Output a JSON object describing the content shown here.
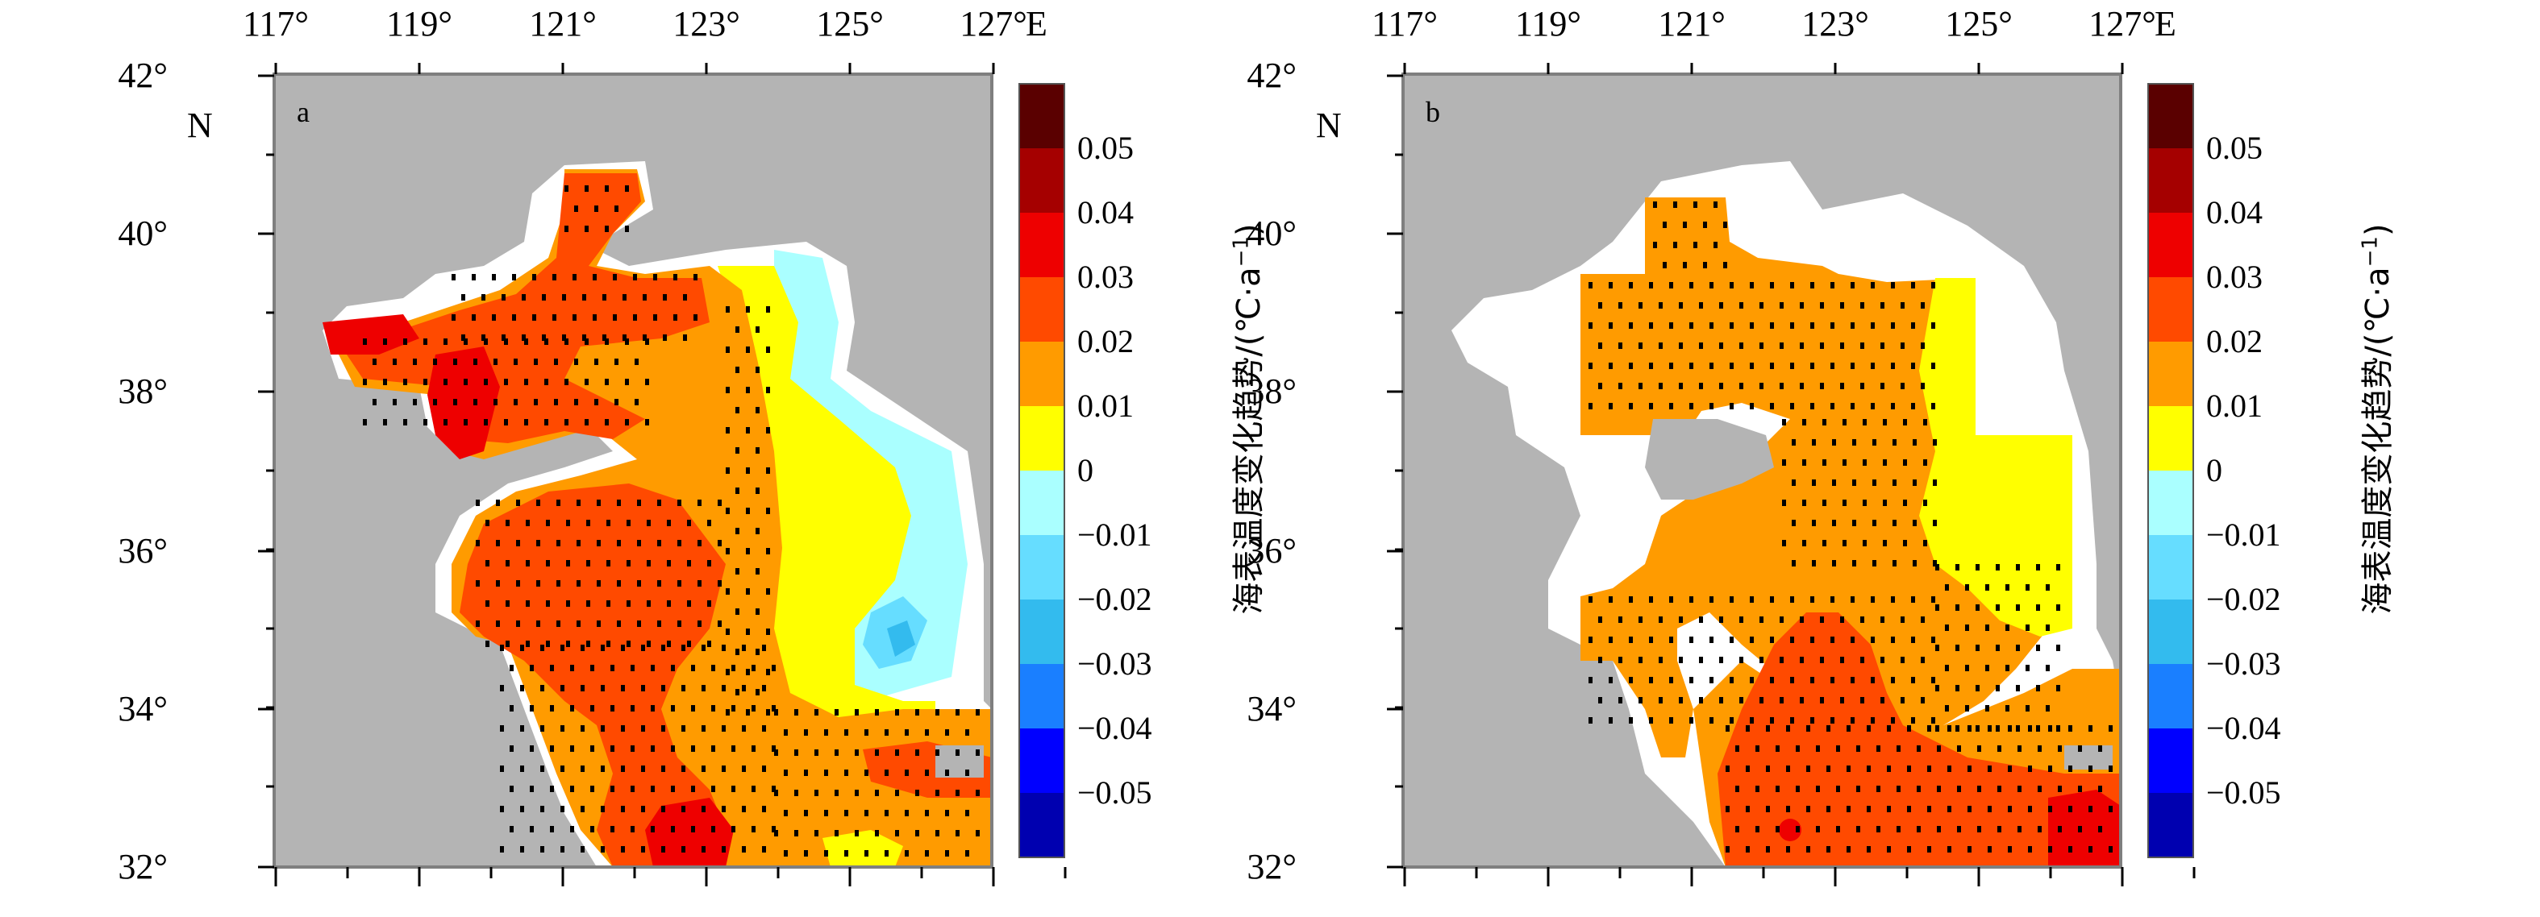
{
  "panels": [
    {
      "id": "a",
      "letter": "a"
    },
    {
      "id": "b",
      "letter": "b"
    }
  ],
  "lon_ticks": [
    "117°",
    "119°",
    "121°",
    "123°",
    "125°",
    "127°"
  ],
  "lon_unit": "E",
  "lat_ticks": [
    "42°",
    "40°",
    "38°",
    "36°",
    "34°",
    "32°"
  ],
  "lat_unit": "N",
  "colorbar": {
    "title": "海表温度变化趋势/(℃·a",
    "title_sup": "−1",
    "title_end": ")",
    "labels": [
      "0.05",
      "0.04",
      "0.03",
      "0.02",
      "0.01",
      "0",
      "−0.01",
      "−0.02",
      "−0.03",
      "−0.04",
      "−0.05"
    ],
    "colors": [
      "#5a0000",
      "#a50000",
      "#ee0000",
      "#ff4a00",
      "#ff9b00",
      "#ffff00",
      "#aaffff",
      "#66ddff",
      "#33bbee",
      "#1a7fff",
      "#0000ff",
      "#0000b0"
    ]
  },
  "map_colors": {
    "land": "#b4b4b4",
    "ocean_nodata": "#ffffff",
    "frame": "#7f7f7f"
  }
}
